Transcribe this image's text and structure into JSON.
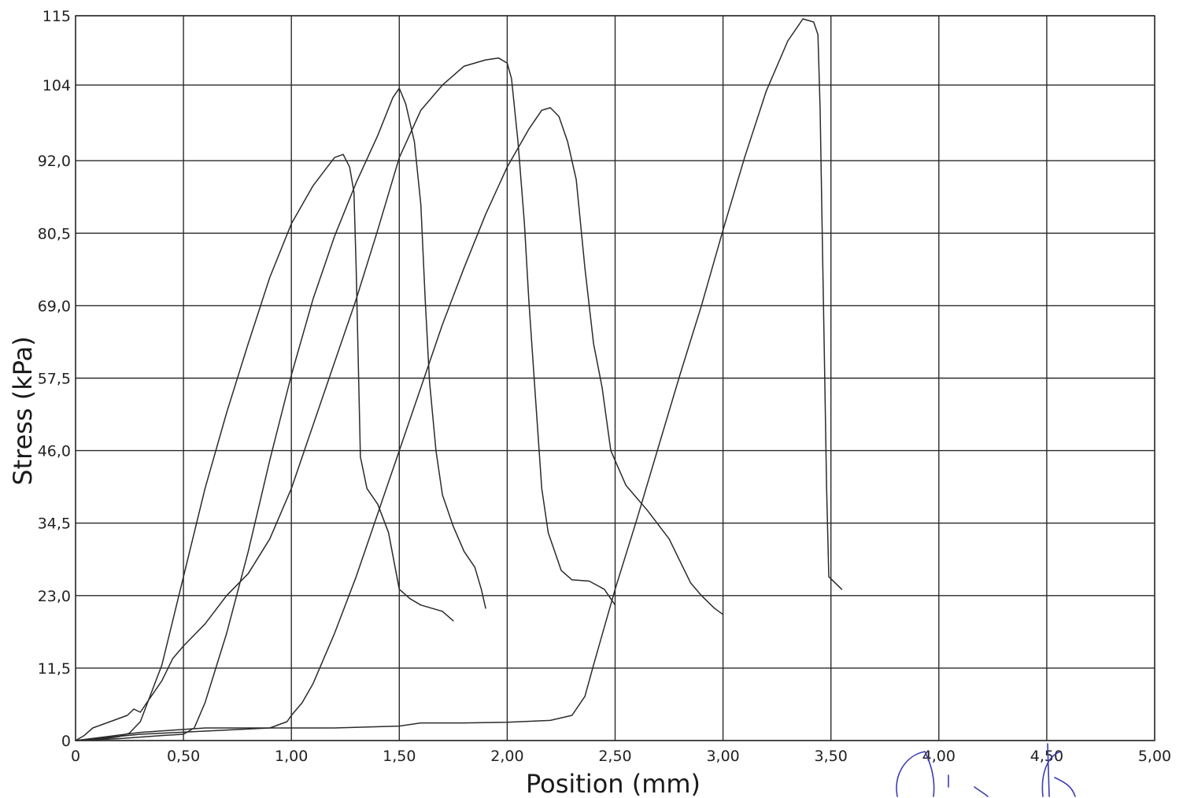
{
  "chart_data": {
    "type": "line",
    "xlabel": "Position (mm)",
    "ylabel": "Stress (kPa)",
    "xlim": [
      0,
      5
    ],
    "ylim": [
      0,
      115
    ],
    "x_ticks": [
      0,
      0.5,
      1,
      1.5,
      2,
      2.5,
      3,
      3.5,
      4,
      4.5,
      5
    ],
    "x_tick_labels": [
      "0",
      "0,50",
      "1,00",
      "1,50",
      "2,00",
      "2,50",
      "3,00",
      "3,50",
      "4,00",
      "4,50",
      "5,00"
    ],
    "y_ticks": [
      0,
      11.5,
      23,
      34.5,
      46,
      57.5,
      69,
      80.5,
      92,
      104,
      115
    ],
    "y_tick_labels": [
      "0",
      "11,5",
      "23,0",
      "34,5",
      "46,0",
      "57,5",
      "69,0",
      "80,5",
      "92,0",
      "104",
      "115"
    ],
    "grid": true,
    "series": [
      {
        "points": [
          [
            0,
            0
          ],
          [
            0.04,
            0.8
          ],
          [
            0.08,
            2
          ],
          [
            0.12,
            2.5
          ],
          [
            0.16,
            3
          ],
          [
            0.2,
            3.5
          ],
          [
            0.24,
            4
          ],
          [
            0.27,
            5
          ],
          [
            0.3,
            4.5
          ],
          [
            0.35,
            7
          ],
          [
            0.4,
            9.5
          ],
          [
            0.45,
            13
          ],
          [
            0.5,
            15
          ],
          [
            0.6,
            18.5
          ],
          [
            0.7,
            23
          ],
          [
            0.8,
            26.5
          ],
          [
            0.9,
            32
          ],
          [
            1.0,
            40
          ],
          [
            1.1,
            50
          ],
          [
            1.2,
            60
          ],
          [
            1.3,
            70
          ],
          [
            1.4,
            81
          ],
          [
            1.5,
            92.5
          ],
          [
            1.6,
            100
          ],
          [
            1.7,
            104
          ],
          [
            1.8,
            107
          ],
          [
            1.9,
            108
          ],
          [
            1.96,
            108.3
          ],
          [
            2.0,
            107.5
          ],
          [
            2.02,
            105
          ],
          [
            2.05,
            95
          ],
          [
            2.08,
            82
          ],
          [
            2.1,
            70
          ],
          [
            2.13,
            55
          ],
          [
            2.16,
            40
          ],
          [
            2.19,
            33
          ],
          [
            2.25,
            27
          ],
          [
            2.3,
            25.5
          ],
          [
            2.38,
            25.3
          ],
          [
            2.45,
            24
          ],
          [
            2.5,
            21.5
          ]
        ]
      },
      {
        "points": [
          [
            0,
            0
          ],
          [
            0.1,
            0.2
          ],
          [
            0.2,
            0.6
          ],
          [
            0.25,
            1.2
          ],
          [
            0.3,
            3
          ],
          [
            0.4,
            12
          ],
          [
            0.5,
            26
          ],
          [
            0.6,
            40
          ],
          [
            0.7,
            52
          ],
          [
            0.8,
            63
          ],
          [
            0.9,
            73.5
          ],
          [
            1.0,
            82
          ],
          [
            1.1,
            88
          ],
          [
            1.2,
            92.5
          ],
          [
            1.24,
            93
          ],
          [
            1.27,
            91
          ],
          [
            1.29,
            87
          ],
          [
            1.3,
            75
          ],
          [
            1.31,
            60
          ],
          [
            1.32,
            45
          ],
          [
            1.35,
            40
          ],
          [
            1.4,
            37.5
          ],
          [
            1.45,
            33
          ],
          [
            1.5,
            24
          ],
          [
            1.55,
            22.5
          ],
          [
            1.6,
            21.5
          ],
          [
            1.7,
            20.5
          ],
          [
            1.75,
            19
          ]
        ]
      },
      {
        "points": [
          [
            0,
            0
          ],
          [
            0.2,
            0.3
          ],
          [
            0.4,
            0.8
          ],
          [
            0.5,
            1
          ],
          [
            0.55,
            2
          ],
          [
            0.6,
            6
          ],
          [
            0.7,
            17
          ],
          [
            0.8,
            30
          ],
          [
            0.9,
            44.5
          ],
          [
            1.0,
            58
          ],
          [
            1.1,
            70
          ],
          [
            1.2,
            80
          ],
          [
            1.3,
            88.5
          ],
          [
            1.4,
            96
          ],
          [
            1.47,
            102
          ],
          [
            1.5,
            103.5
          ],
          [
            1.53,
            101
          ],
          [
            1.57,
            95
          ],
          [
            1.6,
            85
          ],
          [
            1.62,
            70
          ],
          [
            1.64,
            57
          ],
          [
            1.67,
            46
          ],
          [
            1.7,
            39
          ],
          [
            1.75,
            34
          ],
          [
            1.8,
            30
          ],
          [
            1.85,
            27.5
          ],
          [
            1.88,
            24
          ],
          [
            1.9,
            21
          ]
        ]
      },
      {
        "points": [
          [
            0,
            0
          ],
          [
            0.3,
            1
          ],
          [
            0.6,
            1.5
          ],
          [
            0.9,
            2
          ],
          [
            0.98,
            3
          ],
          [
            1.0,
            4
          ],
          [
            1.05,
            6
          ],
          [
            1.1,
            9
          ],
          [
            1.2,
            17
          ],
          [
            1.3,
            26
          ],
          [
            1.4,
            36
          ],
          [
            1.5,
            46
          ],
          [
            1.6,
            56
          ],
          [
            1.7,
            66
          ],
          [
            1.8,
            75
          ],
          [
            1.9,
            83.5
          ],
          [
            2.0,
            91
          ],
          [
            2.1,
            97
          ],
          [
            2.16,
            100
          ],
          [
            2.2,
            100.4
          ],
          [
            2.24,
            99
          ],
          [
            2.28,
            95
          ],
          [
            2.32,
            89
          ],
          [
            2.36,
            75
          ],
          [
            2.4,
            63
          ],
          [
            2.44,
            56
          ],
          [
            2.48,
            46
          ],
          [
            2.55,
            40.5
          ],
          [
            2.65,
            36.5
          ],
          [
            2.75,
            32
          ],
          [
            2.8,
            28.5
          ],
          [
            2.85,
            25
          ],
          [
            2.9,
            23
          ],
          [
            2.96,
            21
          ],
          [
            3.0,
            20
          ]
        ]
      },
      {
        "points": [
          [
            0,
            0
          ],
          [
            0.3,
            1.3
          ],
          [
            0.6,
            2
          ],
          [
            0.9,
            2
          ],
          [
            1.2,
            2
          ],
          [
            1.5,
            2.3
          ],
          [
            1.6,
            2.8
          ],
          [
            1.8,
            2.8
          ],
          [
            2.0,
            2.9
          ],
          [
            2.2,
            3.2
          ],
          [
            2.3,
            4
          ],
          [
            2.36,
            7
          ],
          [
            2.4,
            12
          ],
          [
            2.5,
            24
          ],
          [
            2.6,
            35
          ],
          [
            2.7,
            46.5
          ],
          [
            2.8,
            58
          ],
          [
            2.9,
            69
          ],
          [
            3.0,
            81
          ],
          [
            3.1,
            92.5
          ],
          [
            3.2,
            103
          ],
          [
            3.3,
            111
          ],
          [
            3.37,
            114.5
          ],
          [
            3.42,
            114
          ],
          [
            3.44,
            112
          ],
          [
            3.45,
            100
          ],
          [
            3.46,
            80
          ],
          [
            3.47,
            60
          ],
          [
            3.48,
            40
          ],
          [
            3.49,
            26
          ],
          [
            3.55,
            24
          ]
        ]
      }
    ]
  },
  "signature_text": "Ak"
}
